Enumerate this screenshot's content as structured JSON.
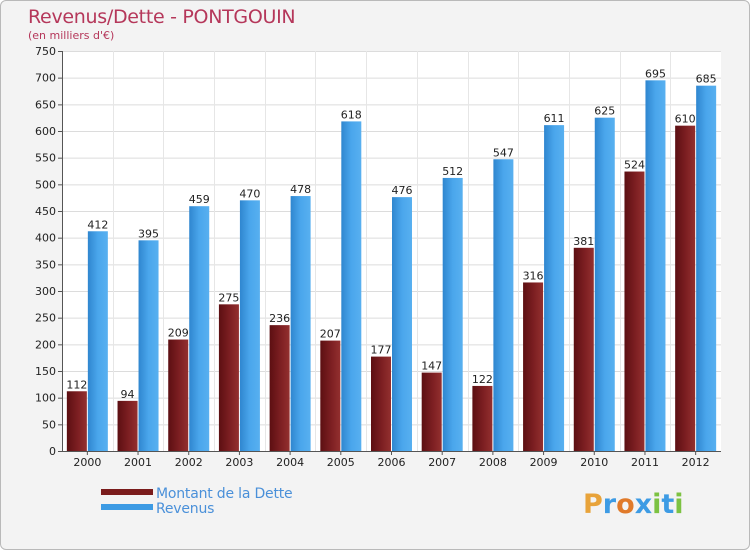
{
  "chart_data": {
    "type": "bar",
    "title": "Revenus/Dette - PONTGOUIN",
    "subtitle": "(en milliers d'€)",
    "categories": [
      "2000",
      "2001",
      "2002",
      "2003",
      "2004",
      "2005",
      "2006",
      "2007",
      "2008",
      "2009",
      "2010",
      "2011",
      "2012"
    ],
    "series": [
      {
        "name": "Montant de la Dette",
        "color": "#7a1c1c",
        "values": [
          112,
          94,
          209,
          275,
          236,
          207,
          177,
          147,
          122,
          316,
          381,
          524,
          610
        ]
      },
      {
        "name": "Revenus",
        "color": "#3d9be4",
        "values": [
          412,
          395,
          459,
          470,
          478,
          618,
          476,
          512,
          547,
          611,
          625,
          695,
          685
        ]
      }
    ],
    "ylim": [
      0,
      750
    ],
    "yticks": [
      0,
      50,
      100,
      150,
      200,
      250,
      300,
      350,
      400,
      450,
      500,
      550,
      600,
      650,
      700,
      750
    ],
    "grid": true,
    "legend": "bottom-left"
  },
  "logo": {
    "text": "Proxiti",
    "letters": [
      {
        "ch": "P",
        "color": "#e8a33a"
      },
      {
        "ch": "r",
        "color": "#3d9be4"
      },
      {
        "ch": "o",
        "color": "#e07a2a"
      },
      {
        "ch": "x",
        "color": "#3d9be4"
      },
      {
        "ch": "i",
        "color": "#7cc242"
      },
      {
        "ch": "t",
        "color": "#3d9be4"
      },
      {
        "ch": "i",
        "color": "#7cc242"
      }
    ]
  }
}
